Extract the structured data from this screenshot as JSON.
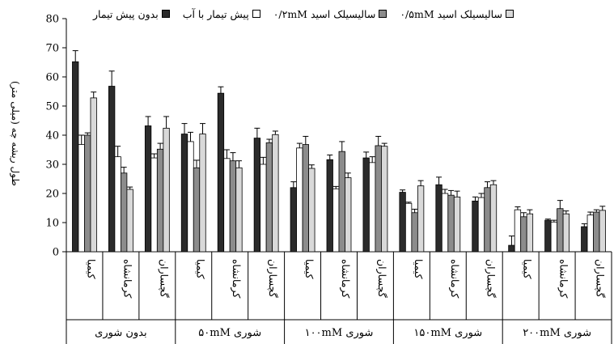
{
  "chart_data": {
    "type": "bar",
    "ylabel": "طول ریشه چه (میلی متر)",
    "ylim": [
      0,
      80
    ],
    "yticks": [
      0,
      10,
      20,
      30,
      40,
      50,
      60,
      70,
      80
    ],
    "grid": false,
    "legend_position": "top",
    "groups": [
      {
        "label": "بدون شوری",
        "categories": [
          "کیمیا",
          "کرمانشاه",
          "گچساران"
        ]
      },
      {
        "label": "شوری ۵۰mM",
        "categories": [
          "کیمیا",
          "کرمانشاه",
          "گچساران"
        ]
      },
      {
        "label": "شوری ۱۰۰mM",
        "categories": [
          "کیمیا",
          "کرمانشاه",
          "گچساران"
        ]
      },
      {
        "label": "شوری ۱۵۰mM",
        "categories": [
          "کیمیا",
          "کرمانشاه",
          "گچساران"
        ]
      },
      {
        "label": "شوری ۲۰۰mM",
        "categories": [
          "کیمیا",
          "کرمانشاه",
          "گچساران"
        ]
      }
    ],
    "series": [
      {
        "name": "بدون پیش تیمار",
        "color": "#2b2b2b",
        "values": [
          65.2,
          56.8,
          43.2,
          40.4,
          54.4,
          39.0,
          22.0,
          31.6,
          32.2,
          20.4,
          23.0,
          17.4,
          2.2,
          10.8,
          8.6
        ],
        "errors": [
          3.8,
          5.2,
          3.2,
          3.6,
          2.2,
          3.4,
          2.0,
          1.6,
          2.0,
          0.8,
          2.6,
          1.4,
          3.2,
          0.4,
          1.0
        ]
      },
      {
        "name": "پیش تیمار با آب",
        "color": "#ffffff",
        "values": [
          36.8,
          32.6,
          32.2,
          37.8,
          32.0,
          30.0,
          35.6,
          21.6,
          30.6,
          16.6,
          20.0,
          18.6,
          14.4,
          10.2,
          12.6
        ],
        "errors": [
          3.2,
          3.6,
          1.4,
          3.2,
          3.0,
          2.4,
          1.6,
          0.8,
          2.0,
          0.4,
          1.4,
          1.4,
          1.0,
          0.6,
          1.0
        ]
      },
      {
        "name": "سالیسیلک اسید ۰/۲mM",
        "color": "#8c8c8c",
        "values": [
          40.0,
          27.0,
          35.2,
          28.8,
          31.2,
          37.4,
          36.8,
          34.4,
          36.4,
          13.4,
          19.4,
          22.0,
          12.0,
          14.8,
          13.6
        ],
        "errors": [
          0.8,
          2.0,
          2.0,
          2.6,
          2.8,
          1.2,
          2.8,
          3.4,
          3.2,
          1.2,
          1.6,
          2.0,
          1.4,
          2.8,
          0.8
        ]
      },
      {
        "name": "سالیسیلک اسید ۰/۵mM",
        "color": "#d9d9d9",
        "values": [
          52.8,
          21.4,
          42.4,
          40.4,
          28.8,
          40.2,
          28.6,
          25.4,
          36.2,
          22.6,
          18.8,
          23.0,
          13.0,
          13.0,
          14.2
        ],
        "errors": [
          2.0,
          0.8,
          4.0,
          3.6,
          2.4,
          1.2,
          1.2,
          1.6,
          1.0,
          1.8,
          2.0,
          1.4,
          1.4,
          1.0,
          1.4
        ]
      }
    ]
  }
}
